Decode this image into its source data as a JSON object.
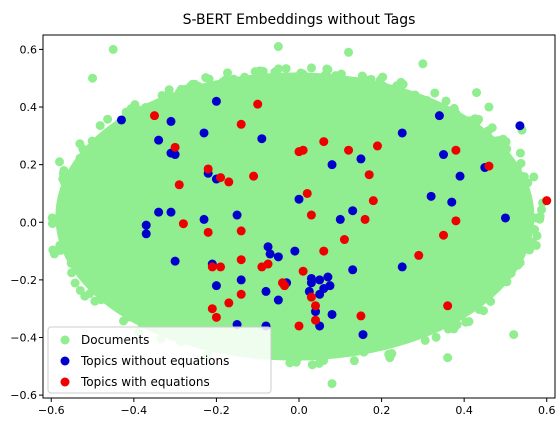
{
  "chart_data": {
    "type": "scatter",
    "title": "S-BERT Embeddings without Tags",
    "xlabel": "",
    "ylabel": "",
    "xlim": [
      -0.62,
      0.62
    ],
    "ylim": [
      -0.61,
      0.65
    ],
    "xticks": [
      -0.6,
      -0.4,
      -0.2,
      0.0,
      0.2,
      0.4,
      0.6
    ],
    "xtick_labels": [
      "−0.6",
      "−0.4",
      "−0.2",
      "0.0",
      "0.2",
      "0.4",
      "0.6"
    ],
    "yticks": [
      -0.6,
      -0.4,
      -0.2,
      0.0,
      0.2,
      0.4,
      0.6
    ],
    "ytick_labels": [
      "−0.6",
      "−0.4",
      "−0.2",
      "0.0",
      "0.2",
      "0.4",
      "0.6"
    ],
    "grid": false,
    "legend_position": "lower-left",
    "documents_region": {
      "center": [
        -0.01,
        0.02
      ],
      "radius_x": 0.58,
      "radius_y": 0.5
    },
    "series": [
      {
        "name": "Documents",
        "color": "#90EE90",
        "points": [
          [
            -0.45,
            0.6
          ],
          [
            -0.58,
            0.21
          ],
          [
            -0.58,
            -0.09
          ],
          [
            -0.5,
            0.5
          ],
          [
            0.43,
            0.45
          ],
          [
            0.52,
            -0.39
          ],
          [
            -0.05,
            0.61
          ],
          [
            0.08,
            -0.56
          ],
          [
            0.22,
            -0.47
          ],
          [
            0.36,
            -0.47
          ],
          [
            0.46,
            0.4
          ],
          [
            0.54,
            0.32
          ],
          [
            -0.48,
            -0.2
          ],
          [
            0.12,
            0.59
          ],
          [
            0.3,
            0.55
          ]
        ]
      },
      {
        "name": "Topics without equations",
        "color": "#0000CC",
        "points": [
          [
            -0.43,
            0.355
          ],
          [
            -0.2,
            0.42
          ],
          [
            -0.34,
            0.285
          ],
          [
            -0.31,
            0.35
          ],
          [
            -0.31,
            0.24
          ],
          [
            -0.3,
            0.235
          ],
          [
            -0.23,
            0.31
          ],
          [
            -0.09,
            0.29
          ],
          [
            -0.22,
            0.17
          ],
          [
            -0.2,
            0.15
          ],
          [
            -0.34,
            0.035
          ],
          [
            -0.31,
            0.035
          ],
          [
            -0.23,
            0.01
          ],
          [
            -0.15,
            0.025
          ],
          [
            -0.37,
            -0.01
          ],
          [
            -0.37,
            -0.04
          ],
          [
            -0.3,
            -0.135
          ],
          [
            -0.21,
            -0.145
          ],
          [
            -0.075,
            -0.085
          ],
          [
            -0.07,
            -0.11
          ],
          [
            -0.05,
            -0.12
          ],
          [
            -0.01,
            -0.1
          ],
          [
            -0.2,
            -0.22
          ],
          [
            -0.14,
            -0.2
          ],
          [
            -0.08,
            -0.24
          ],
          [
            -0.03,
            -0.21
          ],
          [
            0.03,
            -0.195
          ],
          [
            0.05,
            -0.2
          ],
          [
            0.03,
            -0.21
          ],
          [
            0.07,
            -0.19
          ],
          [
            0.025,
            -0.24
          ],
          [
            0.05,
            -0.25
          ],
          [
            0.06,
            -0.23
          ],
          [
            0.075,
            -0.22
          ],
          [
            0.04,
            -0.31
          ],
          [
            0.05,
            -0.36
          ],
          [
            0.08,
            -0.32
          ],
          [
            -0.15,
            -0.355
          ],
          [
            -0.08,
            -0.36
          ],
          [
            0.1,
            0.01
          ],
          [
            0.13,
            0.04
          ],
          [
            0.15,
            0.22
          ],
          [
            0.08,
            0.2
          ],
          [
            0.0,
            0.08
          ],
          [
            0.13,
            -0.165
          ],
          [
            0.25,
            -0.155
          ],
          [
            0.25,
            0.31
          ],
          [
            0.34,
            0.37
          ],
          [
            0.35,
            0.235
          ],
          [
            0.32,
            0.09
          ],
          [
            0.37,
            0.07
          ],
          [
            0.39,
            0.16
          ],
          [
            0.45,
            0.19
          ],
          [
            0.5,
            0.015
          ],
          [
            0.535,
            0.335
          ],
          [
            0.155,
            -0.39
          ],
          [
            -0.05,
            -0.27
          ]
        ]
      },
      {
        "name": "Topics with equations",
        "color": "#EE0000",
        "points": [
          [
            -0.35,
            0.37
          ],
          [
            -0.1,
            0.41
          ],
          [
            -0.3,
            0.26
          ],
          [
            -0.22,
            0.185
          ],
          [
            -0.19,
            0.155
          ],
          [
            -0.17,
            0.14
          ],
          [
            -0.29,
            0.13
          ],
          [
            -0.11,
            0.16
          ],
          [
            -0.14,
            0.34
          ],
          [
            0.0,
            0.245
          ],
          [
            0.01,
            0.25
          ],
          [
            0.06,
            0.28
          ],
          [
            0.12,
            0.25
          ],
          [
            0.19,
            0.265
          ],
          [
            0.17,
            0.165
          ],
          [
            0.18,
            0.075
          ],
          [
            0.02,
            0.1
          ],
          [
            0.03,
            0.025
          ],
          [
            -0.28,
            -0.005
          ],
          [
            -0.22,
            -0.035
          ],
          [
            -0.14,
            -0.03
          ],
          [
            -0.21,
            -0.155
          ],
          [
            -0.19,
            -0.155
          ],
          [
            -0.14,
            -0.13
          ],
          [
            -0.09,
            -0.155
          ],
          [
            -0.075,
            -0.145
          ],
          [
            -0.04,
            -0.21
          ],
          [
            -0.035,
            -0.22
          ],
          [
            0.06,
            -0.1
          ],
          [
            0.01,
            -0.17
          ],
          [
            0.03,
            -0.26
          ],
          [
            0.04,
            -0.29
          ],
          [
            -0.14,
            -0.25
          ],
          [
            -0.17,
            -0.28
          ],
          [
            -0.21,
            -0.3
          ],
          [
            -0.2,
            -0.33
          ],
          [
            0.04,
            -0.34
          ],
          [
            0.0,
            -0.36
          ],
          [
            0.15,
            -0.325
          ],
          [
            0.29,
            -0.115
          ],
          [
            0.35,
            -0.045
          ],
          [
            0.38,
            0.005
          ],
          [
            0.38,
            0.25
          ],
          [
            0.46,
            0.195
          ],
          [
            0.6,
            0.075
          ],
          [
            0.36,
            -0.29
          ],
          [
            0.11,
            -0.06
          ],
          [
            0.16,
            0.01
          ]
        ]
      }
    ]
  }
}
